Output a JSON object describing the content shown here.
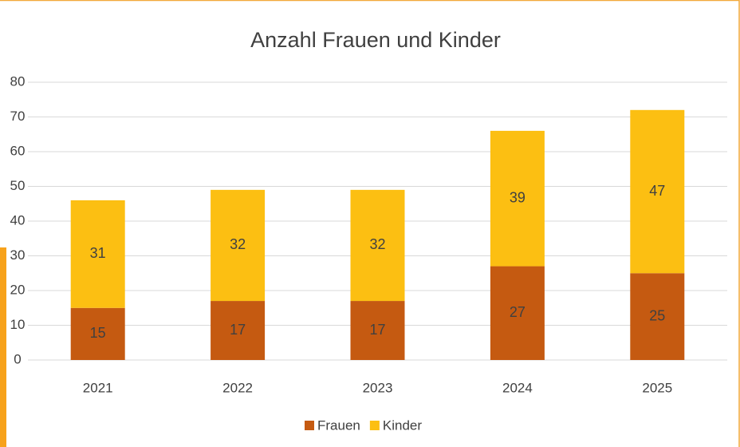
{
  "chart_data": {
    "type": "stacked_bar",
    "title": "Anzahl Frauen und Kinder",
    "categories": [
      "2021",
      "2022",
      "2023",
      "2024",
      "2025"
    ],
    "series": [
      {
        "name": "Frauen",
        "color": "#c55a11",
        "values": [
          15,
          17,
          17,
          27,
          25
        ]
      },
      {
        "name": "Kinder",
        "color": "#fcbf12",
        "values": [
          31,
          32,
          32,
          39,
          47
        ]
      }
    ],
    "ylim": [
      0,
      80
    ],
    "yticks": [
      0,
      10,
      20,
      30,
      40,
      50,
      60,
      70,
      80
    ],
    "grid": true,
    "legend": "bottom"
  }
}
